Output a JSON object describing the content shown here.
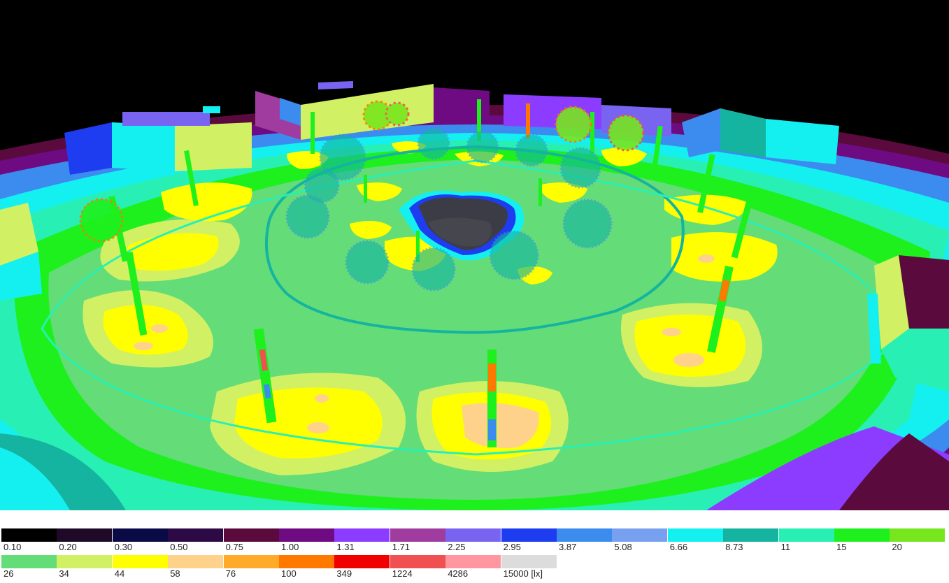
{
  "legend": {
    "row1": [
      {
        "label": "0.10",
        "color": "#000000"
      },
      {
        "label": "0.20",
        "color": "#1e0a28"
      },
      {
        "label": "0.30",
        "color": "#0a0a46"
      },
      {
        "label": "0.50",
        "color": "#2d0a46"
      },
      {
        "label": "0.75",
        "color": "#5a0a3c"
      },
      {
        "label": "1.00",
        "color": "#6e0a82"
      },
      {
        "label": "1.31",
        "color": "#8c3cff"
      },
      {
        "label": "1.71",
        "color": "#a03ca0"
      },
      {
        "label": "2.25",
        "color": "#7864f0"
      },
      {
        "label": "2.95",
        "color": "#1e3cf0"
      },
      {
        "label": "3.87",
        "color": "#3c8cf0"
      },
      {
        "label": "5.08",
        "color": "#78a0f0"
      },
      {
        "label": "6.66",
        "color": "#14f0f0"
      },
      {
        "label": "8.73",
        "color": "#14b4a0"
      },
      {
        "label": "11",
        "color": "#28f0b4"
      },
      {
        "label": "15",
        "color": "#1ef01e"
      },
      {
        "label": "20",
        "color": "#78e61e"
      }
    ],
    "row2": [
      {
        "label": "26",
        "color": "#64dc78"
      },
      {
        "label": "34",
        "color": "#d2f064"
      },
      {
        "label": "44",
        "color": "#ffff00"
      },
      {
        "label": "58",
        "color": "#ffd28c"
      },
      {
        "label": "76",
        "color": "#ffaa28"
      },
      {
        "label": "100",
        "color": "#ff7800"
      },
      {
        "label": "349",
        "color": "#f00000"
      },
      {
        "label": "1224",
        "color": "#f05050"
      },
      {
        "label": "4286",
        "color": "#ff96a0"
      },
      {
        "label": "15000 [lx]",
        "color": "#dcdcdc"
      }
    ]
  },
  "scene": {
    "background_color": "#000000",
    "ground_base_color": "#64dc78"
  }
}
